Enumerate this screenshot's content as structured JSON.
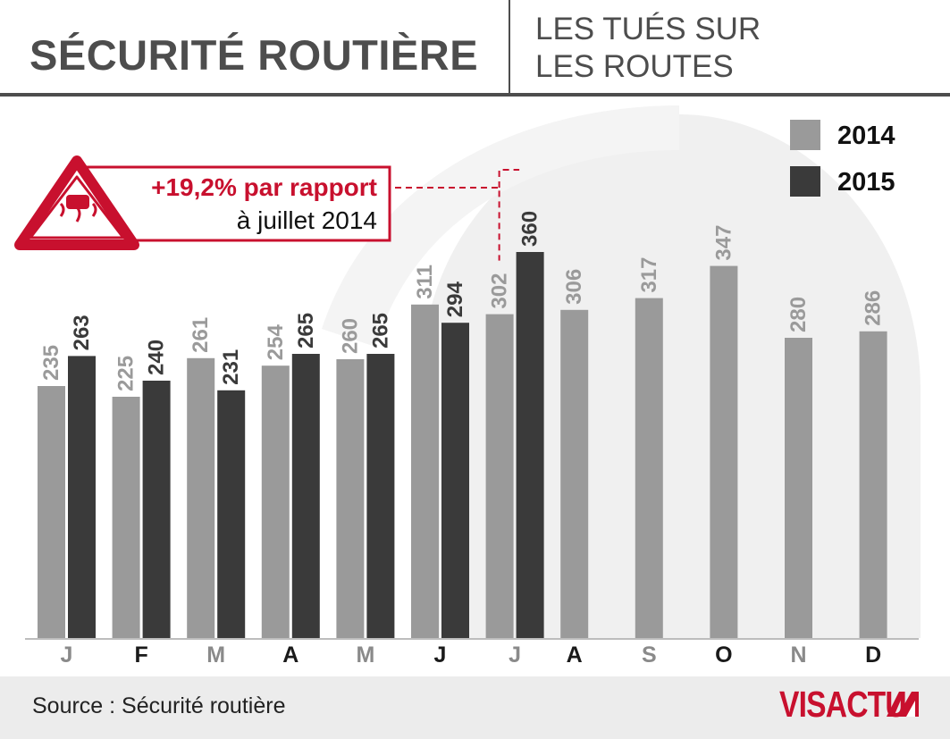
{
  "header": {
    "title": "SÉCURITÉ ROUTIÈRE",
    "subtitle_line1": "LES TUÉS SUR",
    "subtitle_line2": "LES ROUTES"
  },
  "annotation": {
    "line1": "+19,2% par rapport",
    "line2": "à juillet 2014",
    "icon": "slippery-road-warning-icon"
  },
  "footer": {
    "source": "Source : Sécurité routière",
    "logo": "VISACTU",
    "logo_icon": "visactu-mark-icon"
  },
  "colors": {
    "series_2014": "#9a9a9a",
    "series_2015": "#3a3a3a",
    "accent": "#c8102e",
    "text": "#4d4d4d",
    "background_shape": "#f0f0f0"
  },
  "chart_data": {
    "type": "bar",
    "title": "Les tués sur les routes",
    "xlabel": "",
    "ylabel": "",
    "ylim": [
      0,
      380
    ],
    "grid": false,
    "legend_position": "top-right",
    "categories": [
      "J",
      "F",
      "M",
      "A",
      "M",
      "J",
      "J",
      "A",
      "S",
      "O",
      "N",
      "D"
    ],
    "series": [
      {
        "name": "2014",
        "values": [
          235,
          225,
          261,
          254,
          260,
          311,
          302,
          306,
          317,
          347,
          280,
          286
        ]
      },
      {
        "name": "2015",
        "values": [
          263,
          240,
          231,
          265,
          265,
          294,
          360,
          null,
          null,
          null,
          null,
          null
        ]
      }
    ]
  }
}
